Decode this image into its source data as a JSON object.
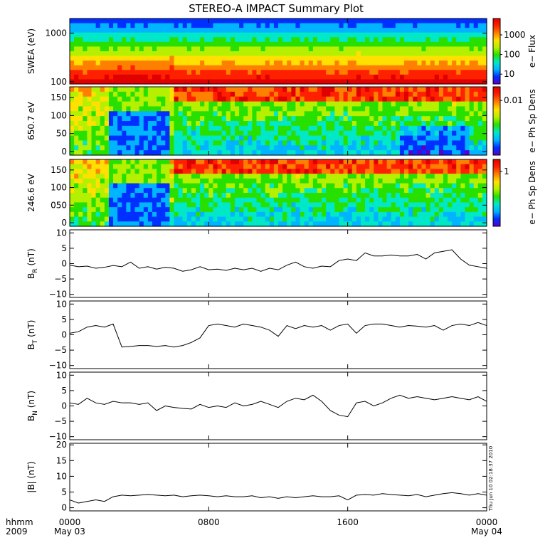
{
  "title": "STEREO-A IMPACT Summary Plot",
  "footer": {
    "left_top": "hhmm",
    "left_bottom": "2009",
    "ticks": [
      "0000",
      "0800",
      "1600",
      "0000"
    ],
    "dates": [
      "May 03",
      "May 04"
    ],
    "stamp": "Thu Jun 10 02:18:37 2010"
  },
  "colors": {
    "spectrum": [
      "#5a00c8",
      "#0030ff",
      "#00b4ff",
      "#00e8c8",
      "#28e000",
      "#b4f000",
      "#ffe000",
      "#ff8000",
      "#ff2000",
      "#e00000"
    ]
  },
  "chart_data": [
    {
      "type": "heatmap",
      "ylabel": "SWEA (eV)",
      "yscale": "log",
      "ytick_labels": [
        "1000",
        "100"
      ],
      "ytick_values": [
        1000,
        100
      ],
      "ylim": [
        90,
        2000
      ],
      "colorbar": {
        "label": "e− Flux",
        "tick_labels": [
          "1000",
          "100",
          "10"
        ],
        "scale": "log"
      }
    },
    {
      "type": "heatmap",
      "ylabel": "650.7 eV",
      "ytick_labels": [
        "150",
        "100",
        "50",
        "0"
      ],
      "ytick_values": [
        150,
        100,
        50,
        0
      ],
      "ylim": [
        -10,
        180
      ],
      "colorbar": {
        "label": "e− Ph Sp Dens",
        "tick_labels": [
          "0.01"
        ],
        "scale": "log"
      }
    },
    {
      "type": "heatmap",
      "ylabel": "246.6 eV",
      "ytick_labels": [
        "150",
        "100",
        "050",
        "0"
      ],
      "ytick_values": [
        150,
        100,
        50,
        0
      ],
      "ylim": [
        -10,
        180
      ],
      "colorbar": {
        "label": "e− Ph Sp Dens",
        "tick_labels": [
          "1"
        ],
        "scale": "log"
      }
    },
    {
      "type": "line",
      "ylabel_main": "B",
      "ylabel_sub": "R",
      "ylabel_unit": " (nT)",
      "ylim": [
        -11,
        11
      ],
      "ytick_values": [
        10,
        5,
        0,
        -5,
        -10
      ],
      "ytick_labels": [
        "10",
        "5",
        "0",
        "−5",
        "−10"
      ],
      "x_hours": [
        0,
        0.5,
        1,
        1.5,
        2,
        2.5,
        3,
        3.5,
        4,
        4.5,
        5,
        5.5,
        6,
        6.5,
        7,
        7.5,
        8,
        8.5,
        9,
        9.5,
        10,
        10.5,
        11,
        11.5,
        12,
        12.5,
        13,
        13.5,
        14,
        14.5,
        15,
        15.5,
        16,
        16.5,
        17,
        17.5,
        18,
        18.5,
        19,
        19.5,
        20,
        20.5,
        21,
        21.5,
        22,
        22.5,
        23,
        23.5,
        24
      ],
      "values": [
        -0.5,
        -1.0,
        -0.8,
        -1.5,
        -1.2,
        -0.6,
        -1.0,
        0.5,
        -1.5,
        -1.0,
        -1.8,
        -1.2,
        -1.5,
        -2.5,
        -2.0,
        -1.0,
        -2.0,
        -1.8,
        -2.2,
        -1.5,
        -2.0,
        -1.5,
        -2.5,
        -1.5,
        -2.0,
        -0.5,
        0.5,
        -1.0,
        -1.5,
        -0.8,
        -1.0,
        1.0,
        1.5,
        1.0,
        3.5,
        2.5,
        2.5,
        2.8,
        2.5,
        2.5,
        3.0,
        1.5,
        3.5,
        4.0,
        4.5,
        1.5,
        -0.5,
        -1.0,
        -1.5
      ]
    },
    {
      "type": "line",
      "ylabel_main": "B",
      "ylabel_sub": "T",
      "ylabel_unit": " (nT)",
      "ylim": [
        -11,
        11
      ],
      "ytick_values": [
        10,
        5,
        0,
        -5,
        -10
      ],
      "ytick_labels": [
        "10",
        "5",
        "0",
        "−5",
        "−10"
      ],
      "x_hours": [
        0,
        0.5,
        1,
        1.5,
        2,
        2.5,
        3,
        3.5,
        4,
        4.5,
        5,
        5.5,
        6,
        6.5,
        7,
        7.5,
        8,
        8.5,
        9,
        9.5,
        10,
        10.5,
        11,
        11.5,
        12,
        12.5,
        13,
        13.5,
        14,
        14.5,
        15,
        15.5,
        16,
        16.5,
        17,
        17.5,
        18,
        18.5,
        19,
        19.5,
        20,
        20.5,
        21,
        21.5,
        22,
        22.5,
        23,
        23.5,
        24
      ],
      "values": [
        0.5,
        1.0,
        2.5,
        3.0,
        2.5,
        3.5,
        -4.0,
        -3.8,
        -3.5,
        -3.5,
        -3.8,
        -3.5,
        -4.0,
        -3.5,
        -2.5,
        -1.0,
        3.0,
        3.5,
        3.0,
        2.5,
        3.5,
        3.0,
        2.5,
        1.5,
        -0.5,
        3.0,
        2.0,
        3.0,
        2.5,
        3.0,
        1.5,
        3.0,
        3.5,
        0.5,
        3.0,
        3.5,
        3.5,
        3.0,
        2.5,
        3.0,
        2.8,
        2.5,
        3.0,
        1.5,
        3.0,
        3.5,
        3.0,
        4.0,
        3.0
      ]
    },
    {
      "type": "line",
      "ylabel_main": "B",
      "ylabel_sub": "N",
      "ylabel_unit": " (nT)",
      "ylim": [
        -11,
        11
      ],
      "ytick_values": [
        10,
        5,
        0,
        -5,
        -10
      ],
      "ytick_labels": [
        "10",
        "5",
        "0",
        "−5",
        "−10"
      ],
      "x_hours": [
        0,
        0.5,
        1,
        1.5,
        2,
        2.5,
        3,
        3.5,
        4,
        4.5,
        5,
        5.5,
        6,
        6.5,
        7,
        7.5,
        8,
        8.5,
        9,
        9.5,
        10,
        10.5,
        11,
        11.5,
        12,
        12.5,
        13,
        13.5,
        14,
        14.5,
        15,
        15.5,
        16,
        16.5,
        17,
        17.5,
        18,
        18.5,
        19,
        19.5,
        20,
        20.5,
        21,
        21.5,
        22,
        22.5,
        23,
        23.5,
        24
      ],
      "values": [
        1.0,
        0.5,
        2.5,
        1.0,
        0.5,
        1.5,
        1.0,
        1.0,
        0.5,
        1.0,
        -1.5,
        0.0,
        -0.5,
        -0.8,
        -1.0,
        0.5,
        -0.5,
        0.0,
        -0.5,
        1.0,
        0.0,
        0.5,
        1.5,
        0.5,
        -0.5,
        1.5,
        2.5,
        2.0,
        3.5,
        1.5,
        -1.5,
        -3.0,
        -3.5,
        1.0,
        1.5,
        0.0,
        1.0,
        2.5,
        3.5,
        2.5,
        3.0,
        2.5,
        2.0,
        2.5,
        3.0,
        2.5,
        2.0,
        3.0,
        1.5
      ]
    },
    {
      "type": "line",
      "ylabel_main": "|B|",
      "ylabel_sub": "",
      "ylabel_unit": " (nT)",
      "ylim": [
        -1,
        20.5
      ],
      "ytick_values": [
        20,
        15,
        10,
        5,
        0
      ],
      "ytick_labels": [
        "20",
        "15",
        "10",
        "5",
        "0"
      ],
      "x_hours": [
        0,
        0.5,
        1,
        1.5,
        2,
        2.5,
        3,
        3.5,
        4,
        4.5,
        5,
        5.5,
        6,
        6.5,
        7,
        7.5,
        8,
        8.5,
        9,
        9.5,
        10,
        10.5,
        11,
        11.5,
        12,
        12.5,
        13,
        13.5,
        14,
        14.5,
        15,
        15.5,
        16,
        16.5,
        17,
        17.5,
        18,
        18.5,
        19,
        19.5,
        20,
        20.5,
        21,
        21.5,
        22,
        22.5,
        23,
        23.5,
        24
      ],
      "values": [
        2.5,
        1.5,
        2.0,
        2.5,
        2.0,
        3.5,
        4.0,
        3.8,
        4.0,
        4.2,
        4.0,
        3.8,
        4.0,
        3.5,
        3.8,
        4.0,
        3.8,
        3.5,
        3.8,
        3.5,
        3.5,
        3.8,
        3.2,
        3.5,
        3.0,
        3.5,
        3.2,
        3.5,
        3.8,
        3.5,
        3.5,
        3.8,
        2.5,
        4.0,
        4.2,
        4.0,
        4.5,
        4.2,
        4.0,
        3.8,
        4.2,
        3.5,
        4.0,
        4.5,
        4.8,
        4.5,
        4.0,
        4.5,
        4.0
      ]
    }
  ]
}
